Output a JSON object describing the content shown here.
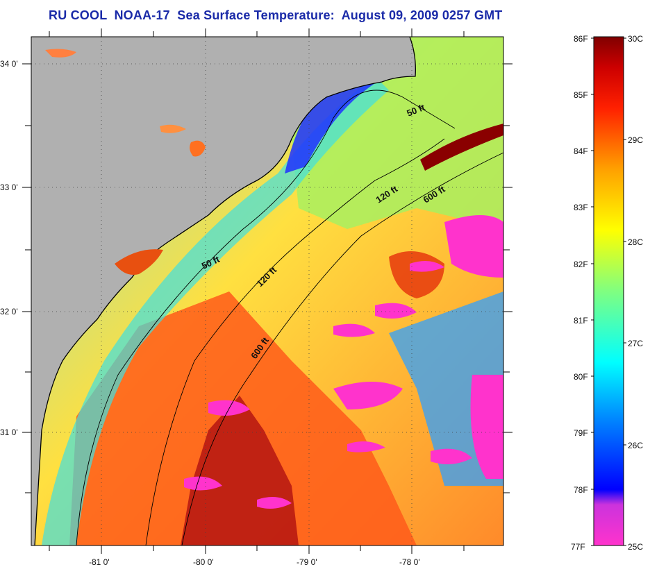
{
  "title": "RU COOL  NOAA-17  Sea Surface Temperature:  August 09, 2009 0257 GMT",
  "map": {
    "lat_labels": [
      "34 0'",
      "33 0'",
      "32 0'",
      "31 0'"
    ],
    "lon_labels": [
      "-81 0'",
      "-80 0'",
      "-79 0'",
      "-78 0'"
    ],
    "contours": [
      {
        "label": "50 ft"
      },
      {
        "label": "120 ft"
      },
      {
        "label": "600 ft"
      },
      {
        "label": "50 ft"
      },
      {
        "label": "120 ft"
      },
      {
        "label": "600 ft"
      }
    ],
    "colors": {
      "land": "#b0b0b0",
      "coastline": "#000000",
      "cloud_mask": "#ff33cc"
    }
  },
  "colorbar": {
    "fahrenheit_labels": [
      "86F",
      "85F",
      "84F",
      "83F",
      "82F",
      "81F",
      "80F",
      "79F",
      "78F",
      "77F"
    ],
    "celsius_labels": [
      "30C",
      "29C",
      "28C",
      "27C",
      "26C",
      "25C"
    ],
    "colors": [
      "#ff33cc",
      "#9933cc",
      "#0000ff",
      "#0080ff",
      "#00ffff",
      "#80ff80",
      "#ffff00",
      "#ff8000",
      "#ff0000",
      "#800000"
    ]
  }
}
